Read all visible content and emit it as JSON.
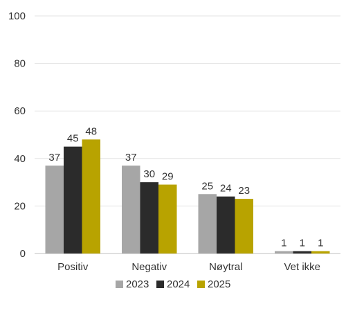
{
  "chart_data": {
    "type": "bar",
    "categories": [
      "Positiv",
      "Negativ",
      "Nøytral",
      "Vet ikke"
    ],
    "series": [
      {
        "name": "2023",
        "values": [
          37,
          37,
          25,
          1
        ],
        "color": "#A6A6A6"
      },
      {
        "name": "2024",
        "values": [
          45,
          30,
          24,
          1
        ],
        "color": "#2B2B2B"
      },
      {
        "name": "2025",
        "values": [
          48,
          29,
          23,
          1
        ],
        "color": "#B8A300"
      }
    ],
    "ylim": [
      0,
      100
    ],
    "yticks": [
      0,
      20,
      40,
      60,
      80,
      100
    ],
    "grid": true,
    "legend_position": "bottom",
    "title": "",
    "xlabel": "",
    "ylabel": ""
  }
}
